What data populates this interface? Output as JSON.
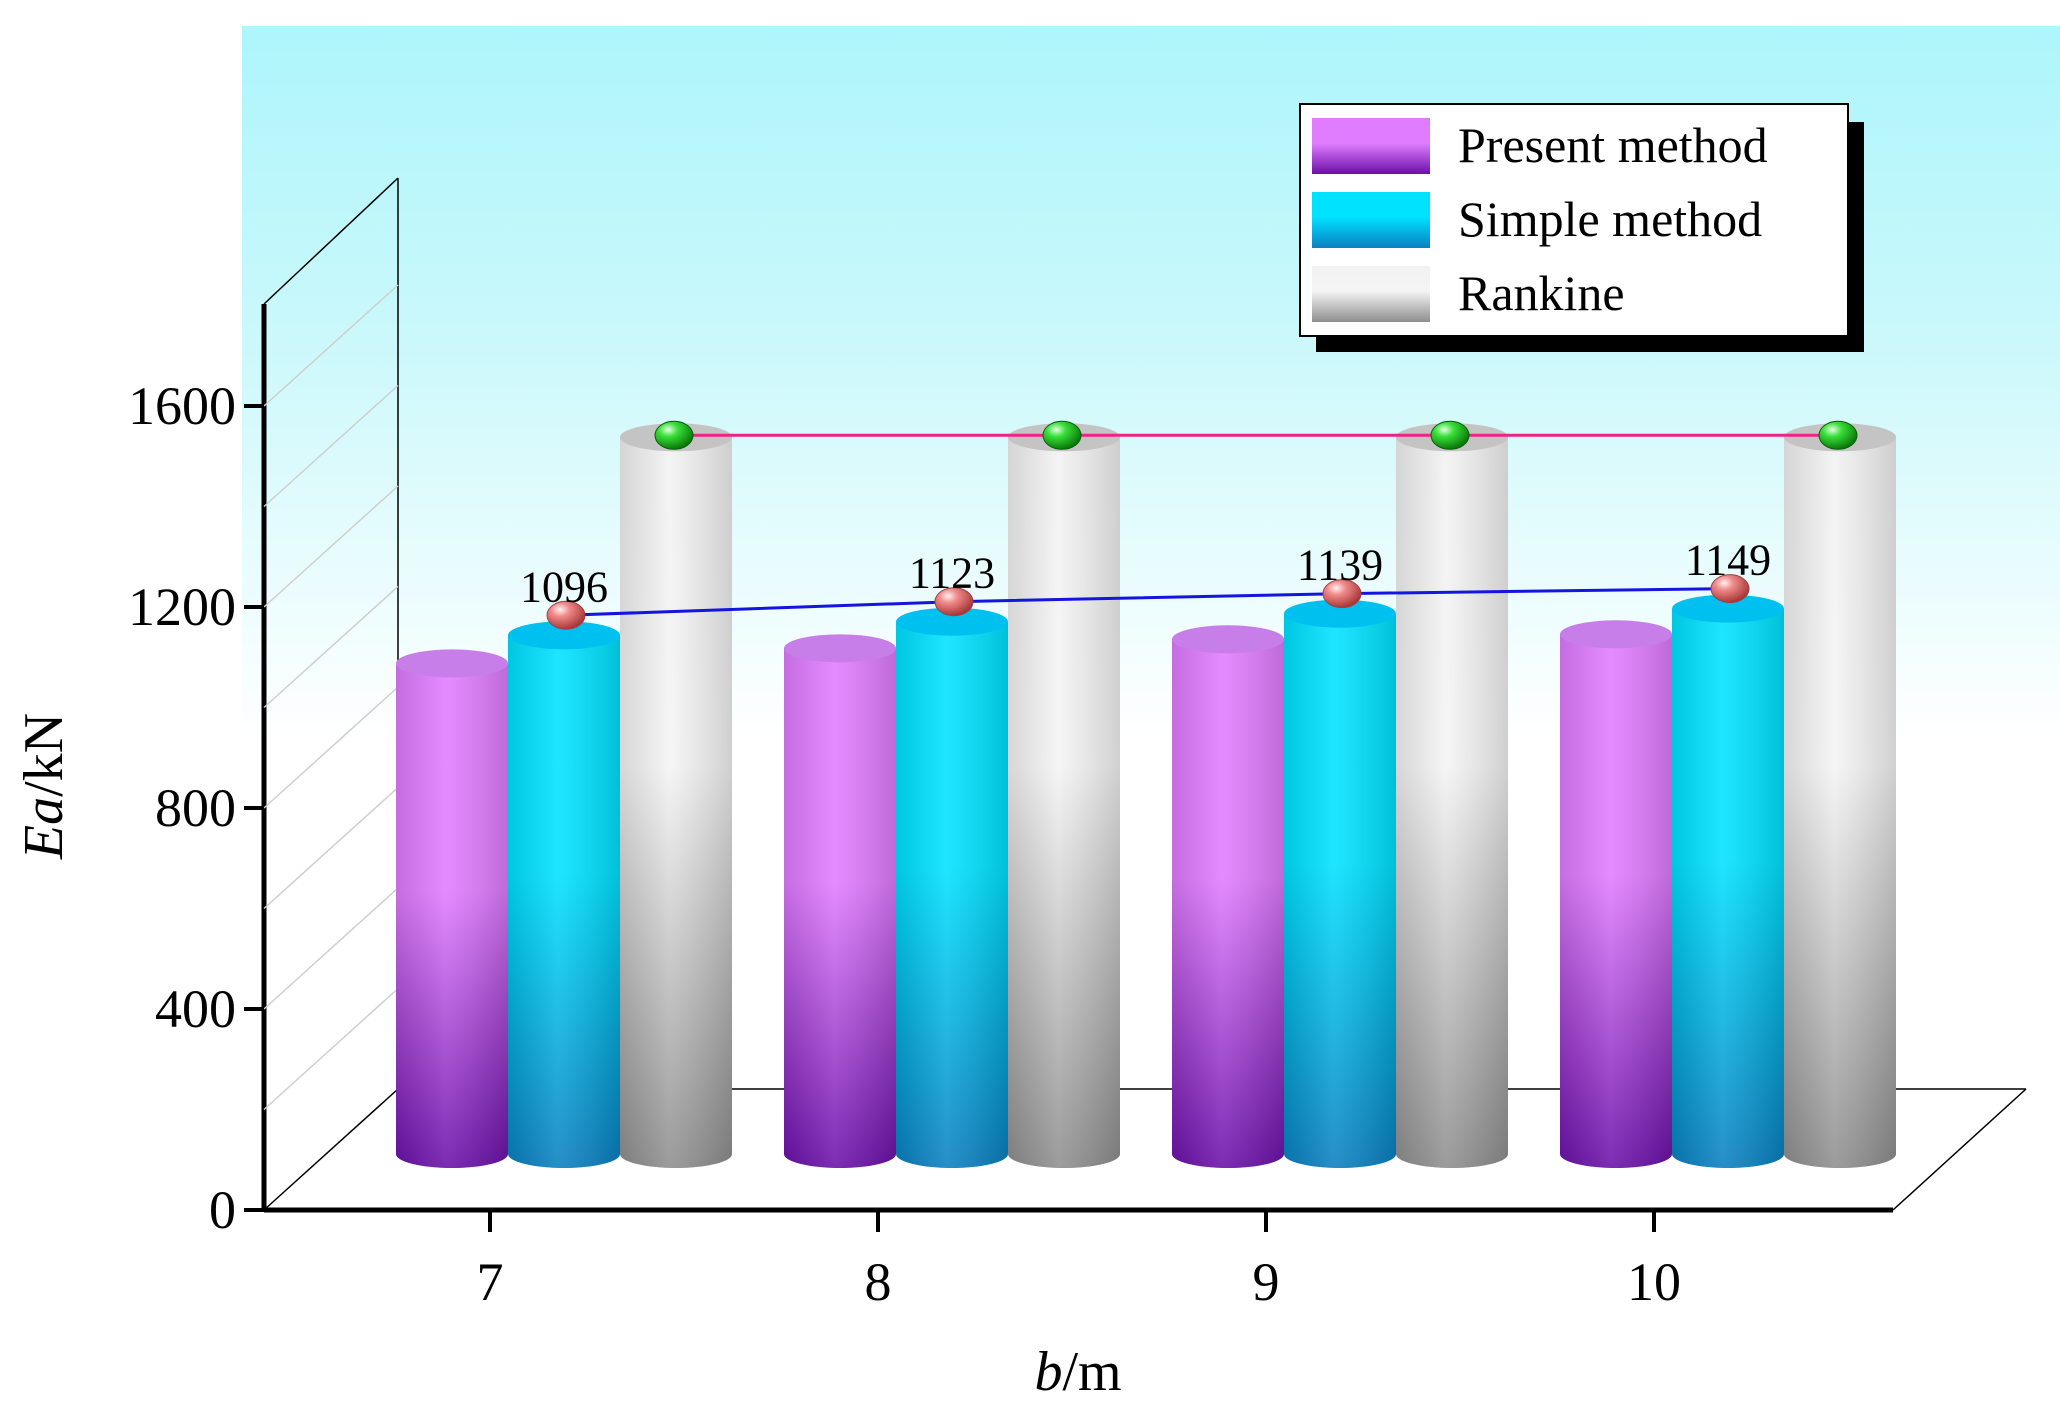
{
  "chart_data": {
    "type": "bar",
    "style": "3d-cylinder",
    "title": "",
    "xlabel_italic": "b",
    "xlabel_unit": "/m",
    "ylabel_italic": "Ea",
    "ylabel_unit": "/kN",
    "ylim": [
      0,
      1800
    ],
    "yticks": [
      "0",
      "400",
      "800",
      "1200",
      "1600"
    ],
    "categories": [
      "7",
      "8",
      "9",
      "10"
    ],
    "series": [
      {
        "name": "Present method",
        "values": [
          1040,
          1070,
          1088,
          1098
        ],
        "color_top": "#e07cff",
        "color_bottom": "#6a10a8"
      },
      {
        "name": "Simple method",
        "values": [
          1096,
          1123,
          1139,
          1149
        ],
        "color_top": "#00e2ff",
        "color_bottom": "#0a7fc0",
        "labels": [
          "1096",
          "1123",
          "1139",
          "1149"
        ],
        "marker_color": "#f07a7a",
        "line_color": "#1515e0"
      },
      {
        "name": "Rankine",
        "values": [
          1490,
          1490,
          1490,
          1490
        ],
        "color_top": "#f2f2f2",
        "color_bottom": "#8e8e8e",
        "marker_color": "#1ec41e",
        "line_color": "#ee2288"
      }
    ],
    "legend_position": "top-right",
    "background_top": "#adf6fb",
    "background_bottom": "#ffffff"
  }
}
